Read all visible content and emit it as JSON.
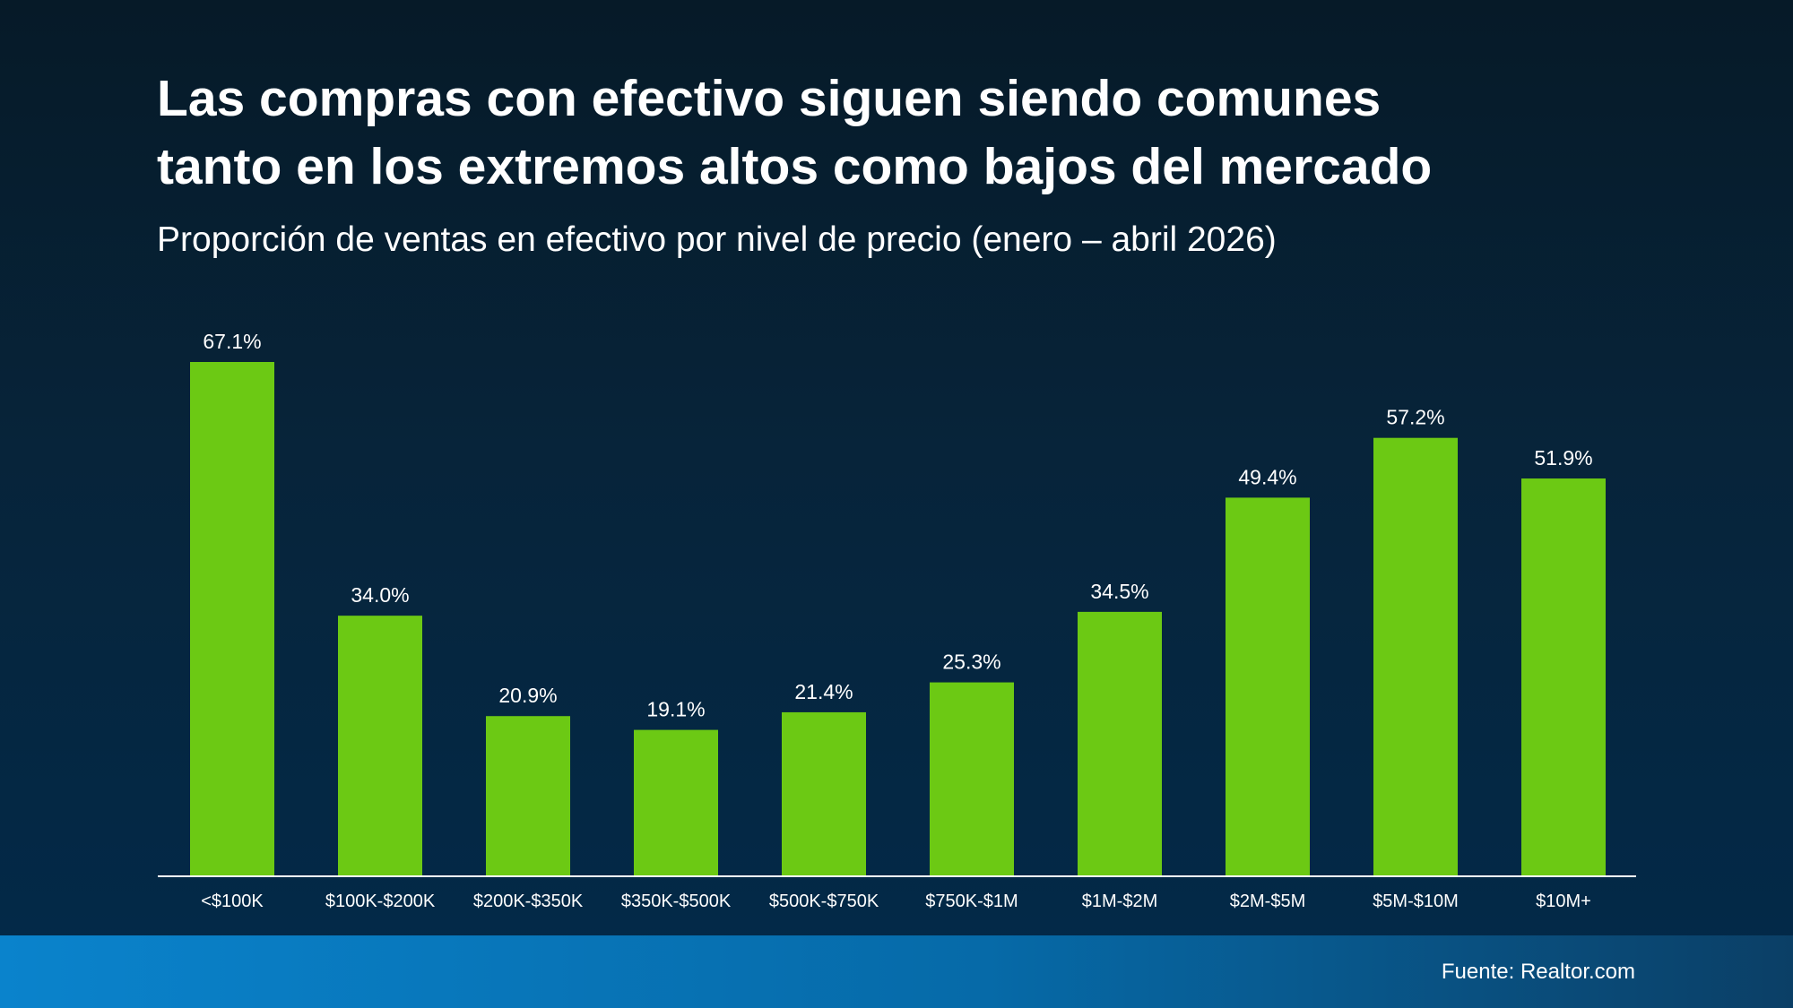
{
  "title_lines": [
    "Las compras con efectivo siguen siendo comunes",
    "tanto en los extremos altos como bajos del mercado"
  ],
  "subtitle": "Proporción de ventas en efectivo por nivel de precio (enero – abril 2026)",
  "source": "Fuente: Realtor.com",
  "colors": {
    "bar": "#6cc914",
    "axis": "#ffffff",
    "text": "#ffffff",
    "footer_band": "#0a83cc"
  },
  "chart_data": {
    "type": "bar",
    "categories": [
      "<$100K",
      "$100K-$200K",
      "$200K-$350K",
      "$350K-$500K",
      "$500K-$750K",
      "$750K-$1M",
      "$1M-$2M",
      "$2M-$5M",
      "$5M-$10M",
      "$10M+"
    ],
    "values": [
      67.1,
      34.0,
      20.9,
      19.1,
      21.4,
      25.3,
      34.5,
      49.4,
      57.2,
      51.9
    ],
    "value_labels": [
      "67.1%",
      "34.0%",
      "20.9%",
      "19.1%",
      "21.4%",
      "25.3%",
      "34.5%",
      "49.4%",
      "57.2%",
      "51.9%"
    ],
    "ylim": [
      0,
      67.1
    ],
    "grid": false,
    "legend": "none"
  }
}
